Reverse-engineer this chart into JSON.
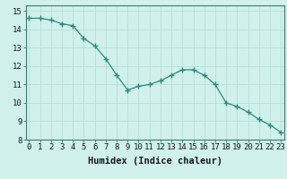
{
  "xlabel": "Humidex (Indice chaleur)",
  "ylabel": "",
  "x_values": [
    0,
    1,
    2,
    3,
    4,
    5,
    6,
    7,
    8,
    9,
    10,
    11,
    12,
    13,
    14,
    15,
    16,
    17,
    18,
    19,
    20,
    21,
    22,
    23
  ],
  "y_values": [
    14.6,
    14.6,
    14.5,
    14.3,
    14.2,
    13.5,
    13.1,
    12.4,
    11.5,
    10.7,
    10.9,
    11.0,
    11.2,
    11.5,
    11.8,
    11.8,
    11.5,
    11.0,
    10.0,
    9.8,
    9.5,
    9.1,
    8.8,
    8.4
  ],
  "ylim": [
    8,
    15
  ],
  "xlim": [
    0,
    23
  ],
  "line_color": "#2e8b7a",
  "marker": "+",
  "marker_size": 4,
  "marker_linewidth": 1.0,
  "background_color": "#cff0eb",
  "grid_color": "#b8ddd8",
  "tick_label_fontsize": 6.5,
  "xlabel_fontsize": 7.5,
  "title_fontsize": 7,
  "line_width": 0.9
}
